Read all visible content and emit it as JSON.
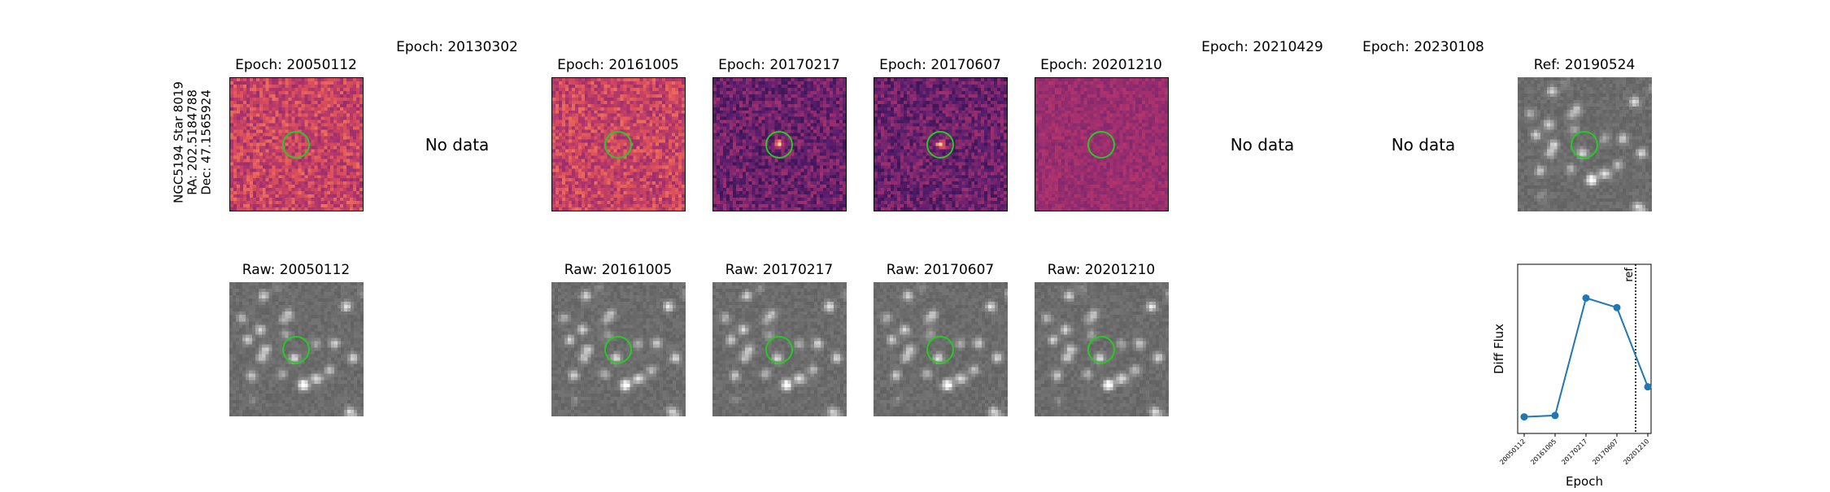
{
  "object": {
    "line1": "NGC5194 Star 8019",
    "line2": "RA: 202.5184788",
    "line3": "Dec: 47.1565924"
  },
  "top_row": [
    {
      "title": "Epoch: 20050112",
      "has_data": true,
      "style": "diff-warm"
    },
    {
      "title": "Epoch: 20130302",
      "has_data": false,
      "nodata": "No data"
    },
    {
      "title": "Epoch: 20161005",
      "has_data": true,
      "style": "diff-warm"
    },
    {
      "title": "Epoch: 20170217",
      "has_data": true,
      "style": "diff-purple"
    },
    {
      "title": "Epoch: 20170607",
      "has_data": true,
      "style": "diff-purple"
    },
    {
      "title": "Epoch: 20201210",
      "has_data": true,
      "style": "diff-magenta"
    },
    {
      "title": "Epoch: 20210429",
      "has_data": false,
      "nodata": "No data"
    },
    {
      "title": "Epoch: 20230108",
      "has_data": false,
      "nodata": "No data"
    },
    {
      "title": "Ref: 20190524",
      "has_data": true,
      "style": "gray"
    }
  ],
  "bottom_row": [
    {
      "title": "Raw: 20050112",
      "col": 0
    },
    {
      "title": "Raw: 20161005",
      "col": 2
    },
    {
      "title": "Raw: 20170217",
      "col": 3
    },
    {
      "title": "Raw: 20170607",
      "col": 4
    },
    {
      "title": "Raw: 20201210",
      "col": 5
    }
  ],
  "chart_data": {
    "type": "line",
    "xlabel": "Epoch",
    "ylabel": "Diff Flux",
    "categories": [
      "20050112",
      "20161005",
      "20170217",
      "20170607",
      "20201210"
    ],
    "values": [
      0.05,
      0.06,
      0.92,
      0.85,
      0.27
    ],
    "ylim": [
      0,
      1
    ],
    "ref_marker": {
      "label": "ref",
      "position_between": [
        "20170607",
        "20201210"
      ]
    },
    "color": "#1f77b4",
    "grid": false
  }
}
